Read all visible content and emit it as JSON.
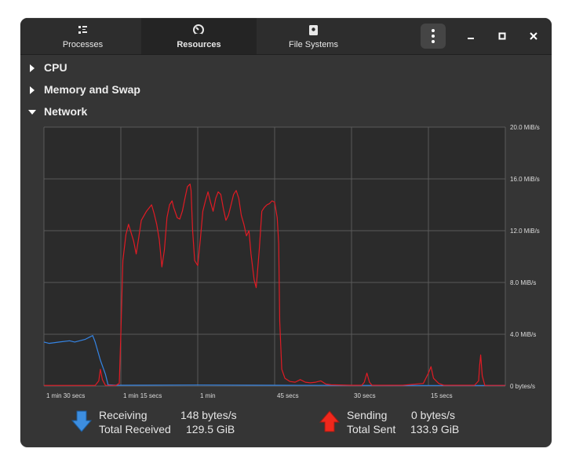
{
  "tabs": [
    {
      "label": "Processes",
      "icon": "processes-list-icon",
      "active": false
    },
    {
      "label": "Resources",
      "icon": "gauge-icon",
      "active": true
    },
    {
      "label": "File Systems",
      "icon": "disk-icon",
      "active": false
    }
  ],
  "window_controls": {
    "menu": "kebab-menu-icon",
    "minimize": "minimize-icon",
    "maximize": "maximize-icon",
    "close": "close-icon"
  },
  "sections": [
    {
      "label": "CPU",
      "expanded": false
    },
    {
      "label": "Memory and Swap",
      "expanded": false
    },
    {
      "label": "Network",
      "expanded": true
    }
  ],
  "chart_data": {
    "type": "line",
    "y_tick_labels": [
      "20.0 MiB/s",
      "16.0 MiB/s",
      "12.0 MiB/s",
      "8.0 MiB/s",
      "4.0 MiB/s",
      "0 bytes/s"
    ],
    "x_tick_labels": [
      "1 min 30 secs",
      "1 min 15 secs",
      "1 min",
      "45 secs",
      "30 secs",
      "15 secs"
    ],
    "ylim": [
      0,
      20
    ],
    "y_unit": "MiB/s",
    "x_range_secs": [
      90,
      0
    ],
    "grid": true,
    "series": [
      {
        "name": "Receiving",
        "color": "#3584e4",
        "points": [
          [
            90,
            3.4
          ],
          [
            89,
            3.3
          ],
          [
            87,
            3.4
          ],
          [
            85,
            3.5
          ],
          [
            84,
            3.4
          ],
          [
            82,
            3.6
          ],
          [
            81,
            3.8
          ],
          [
            80.5,
            3.9
          ],
          [
            80,
            3.4
          ],
          [
            79,
            2.0
          ],
          [
            78,
            0.9
          ],
          [
            77.5,
            0.1
          ],
          [
            76,
            0.06
          ],
          [
            60,
            0.08
          ],
          [
            45,
            0.06
          ],
          [
            30,
            0.05
          ],
          [
            15,
            0.04
          ],
          [
            0,
            0.04
          ]
        ]
      },
      {
        "name": "Sending",
        "color": "#e01b24",
        "points": [
          [
            90,
            0.05
          ],
          [
            80,
            0.05
          ],
          [
            79.3,
            0.4
          ],
          [
            79,
            1.3
          ],
          [
            78.6,
            0.5
          ],
          [
            78,
            0.05
          ],
          [
            76,
            0.05
          ],
          [
            75.3,
            0.2
          ],
          [
            75,
            4.0
          ],
          [
            74.6,
            9.7
          ],
          [
            74,
            11.7
          ],
          [
            73.5,
            12.5
          ],
          [
            72.5,
            11.2
          ],
          [
            72,
            10.2
          ],
          [
            71.5,
            11.5
          ],
          [
            71,
            12.8
          ],
          [
            70,
            13.5
          ],
          [
            69,
            14.0
          ],
          [
            68.5,
            13.3
          ],
          [
            68,
            12.5
          ],
          [
            67.5,
            11.3
          ],
          [
            67,
            9.2
          ],
          [
            66.5,
            10.5
          ],
          [
            66,
            13.0
          ],
          [
            65.5,
            14.0
          ],
          [
            65,
            14.3
          ],
          [
            64.7,
            13.8
          ],
          [
            64,
            13.0
          ],
          [
            63.5,
            12.9
          ],
          [
            63,
            13.5
          ],
          [
            62.5,
            14.5
          ],
          [
            62,
            15.4
          ],
          [
            61.5,
            15.6
          ],
          [
            61.3,
            15.1
          ],
          [
            61,
            12.0
          ],
          [
            60.6,
            9.7
          ],
          [
            60,
            9.3
          ],
          [
            59.5,
            11.3
          ],
          [
            59,
            13.5
          ],
          [
            58.5,
            14.3
          ],
          [
            58,
            15.0
          ],
          [
            57.5,
            14.2
          ],
          [
            57,
            13.5
          ],
          [
            56.5,
            14.5
          ],
          [
            56,
            15.0
          ],
          [
            55.5,
            14.8
          ],
          [
            55,
            13.7
          ],
          [
            54.5,
            12.8
          ],
          [
            54,
            13.2
          ],
          [
            53.5,
            14.0
          ],
          [
            53,
            14.8
          ],
          [
            52.5,
            15.1
          ],
          [
            52,
            14.5
          ],
          [
            51.5,
            13.2
          ],
          [
            51,
            12.5
          ],
          [
            50.5,
            11.6
          ],
          [
            50,
            12.0
          ],
          [
            49.6,
            10.2
          ],
          [
            49,
            8.2
          ],
          [
            48.6,
            7.6
          ],
          [
            48,
            10.5
          ],
          [
            47.5,
            13.5
          ],
          [
            47,
            13.8
          ],
          [
            46.5,
            14.0
          ],
          [
            46,
            14.1
          ],
          [
            45.5,
            14.3
          ],
          [
            45,
            14.2
          ],
          [
            44.5,
            13.0
          ],
          [
            44.2,
            11.0
          ],
          [
            44,
            5.0
          ],
          [
            43.6,
            1.3
          ],
          [
            43,
            0.6
          ],
          [
            42,
            0.35
          ],
          [
            41,
            0.3
          ],
          [
            40,
            0.5
          ],
          [
            39,
            0.3
          ],
          [
            38,
            0.25
          ],
          [
            37,
            0.3
          ],
          [
            36,
            0.4
          ],
          [
            35,
            0.15
          ],
          [
            34,
            0.1
          ],
          [
            30,
            0.06
          ],
          [
            28,
            0.06
          ],
          [
            27.5,
            0.3
          ],
          [
            27,
            1.0
          ],
          [
            26.5,
            0.3
          ],
          [
            26,
            0.06
          ],
          [
            20,
            0.06
          ],
          [
            16,
            0.2
          ],
          [
            15,
            1.0
          ],
          [
            14.5,
            1.5
          ],
          [
            14,
            0.6
          ],
          [
            13,
            0.2
          ],
          [
            12,
            0.06
          ],
          [
            6,
            0.06
          ],
          [
            5.2,
            0.4
          ],
          [
            5,
            1.6
          ],
          [
            4.8,
            2.4
          ],
          [
            4.5,
            0.8
          ],
          [
            4,
            0.05
          ],
          [
            0,
            0.05
          ]
        ]
      }
    ]
  },
  "receiving": {
    "label": "Receiving",
    "rate": "148 bytes/s",
    "total_label": "Total Received",
    "total": "129.5 GiB",
    "color": "#3584e4",
    "icon": "receive-arrow-icon"
  },
  "sending": {
    "label": "Sending",
    "rate": "0 bytes/s",
    "total_label": "Total Sent",
    "total": "133.9 GiB",
    "color": "#e01b24",
    "icon": "send-arrow-icon"
  }
}
